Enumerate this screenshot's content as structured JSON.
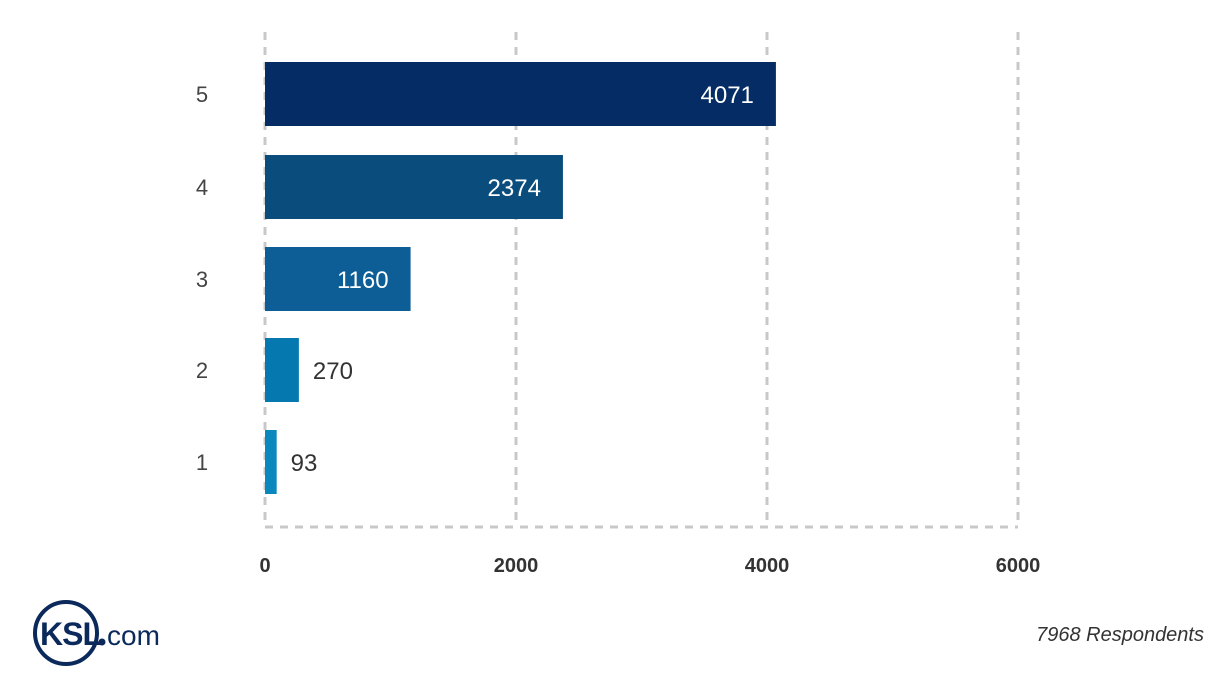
{
  "chart_data": {
    "type": "bar",
    "orientation": "horizontal",
    "categories": [
      "5",
      "4",
      "3",
      "2",
      "1"
    ],
    "values": [
      4071,
      2374,
      1160,
      270,
      93
    ],
    "colors": [
      "#052c65",
      "#0a4d7c",
      "#0d5e97",
      "#0678b0",
      "#0a87bd"
    ],
    "xlim": [
      0,
      6000
    ],
    "xticks": [
      "0",
      "2000",
      "4000",
      "6000"
    ],
    "grid": true,
    "title": "",
    "xlabel": "",
    "ylabel": ""
  },
  "footer": {
    "logo_text": "KSL.com",
    "respondents": "7968 Respondents"
  }
}
